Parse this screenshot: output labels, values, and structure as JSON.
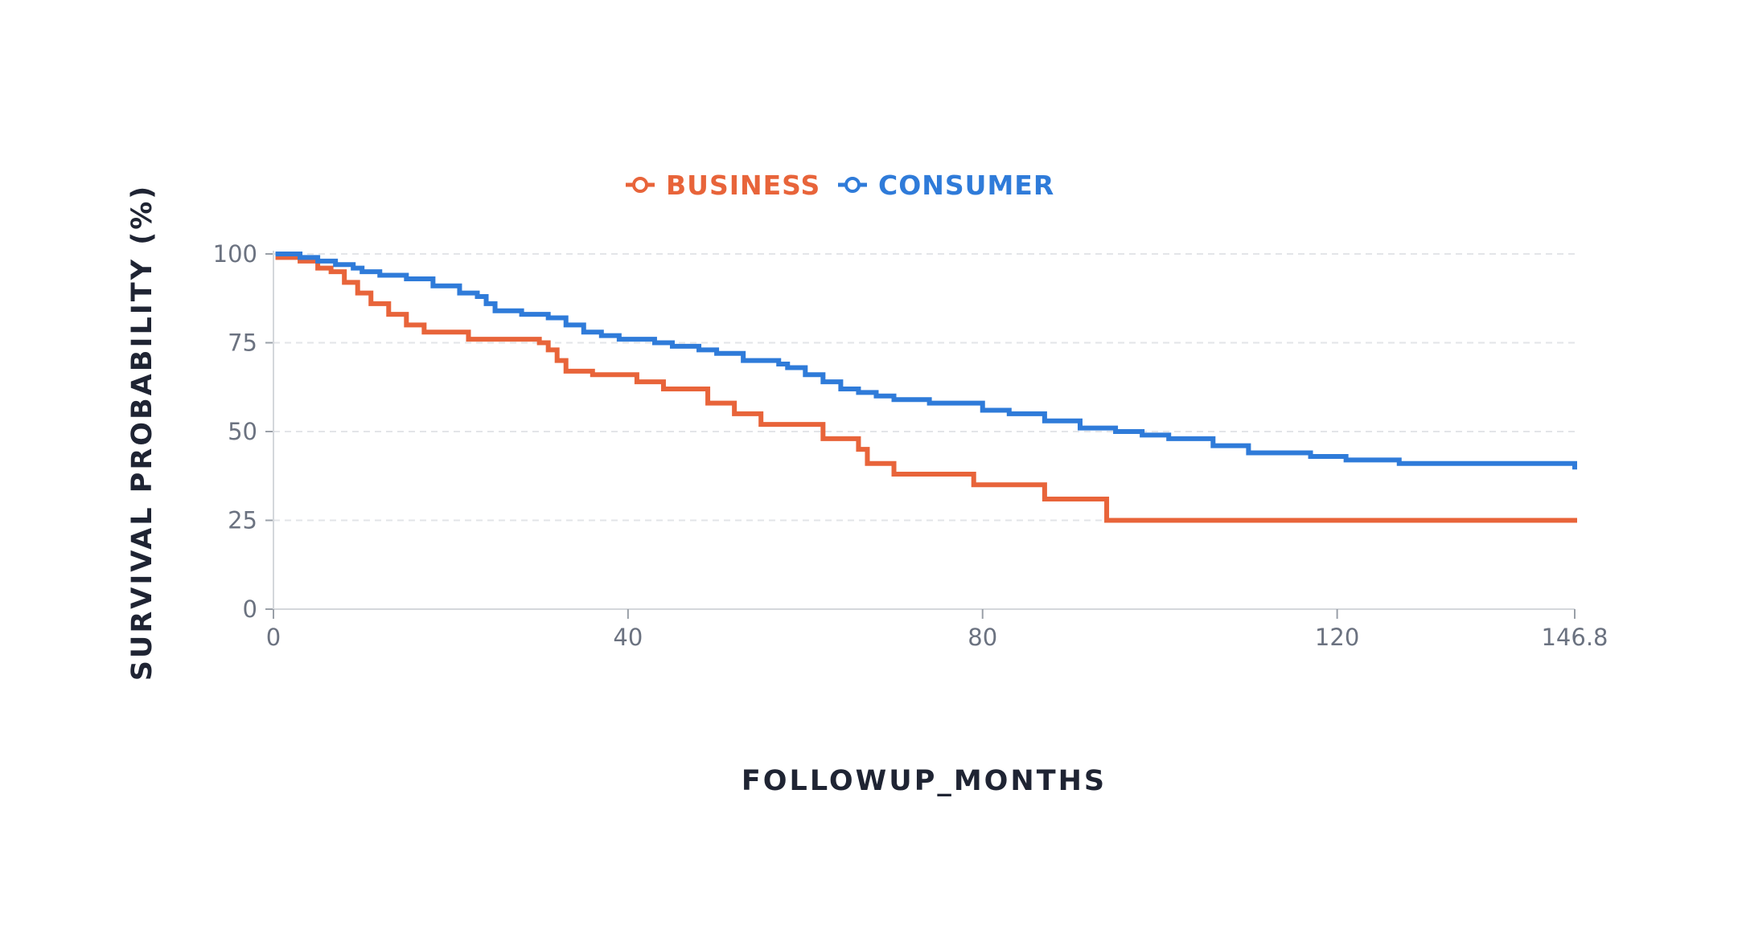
{
  "chart_data": {
    "type": "line",
    "step": true,
    "xlabel": "FOLLOWUP_MONTHS",
    "ylabel": "SURVIVAL PROBABILITY (%)",
    "xlim": [
      0,
      146.8
    ],
    "ylim": [
      0,
      100
    ],
    "xticks": [
      0,
      40,
      80,
      120,
      146.8
    ],
    "xtick_labels": [
      "0",
      "40",
      "80",
      "120",
      "146.8"
    ],
    "yticks": [
      0,
      25,
      50,
      75,
      100
    ],
    "ytick_labels": [
      "0",
      "25",
      "50",
      "75",
      "100"
    ],
    "grid": true,
    "legend_position": "top",
    "series": [
      {
        "name": "BUSINESS",
        "color": "#E8643A",
        "x": [
          0.5,
          3,
          5,
          6.5,
          8,
          9.5,
          11,
          13,
          15,
          17,
          22,
          30,
          31,
          32,
          33,
          36,
          41,
          44,
          49,
          52,
          55,
          62,
          66,
          67,
          70,
          79,
          87,
          94,
          146.8
        ],
        "y": [
          99,
          98,
          96,
          95,
          92,
          89,
          86,
          83,
          80,
          78,
          76,
          75,
          73,
          70,
          67,
          66,
          64,
          62,
          58,
          55,
          52,
          48,
          45,
          41,
          38,
          35,
          31,
          25,
          25
        ]
      },
      {
        "name": "CONSUMER",
        "color": "#2F7BD9",
        "x": [
          0.5,
          3,
          5,
          7,
          9,
          10,
          12,
          15,
          18,
          21,
          23,
          24,
          25,
          28,
          31,
          33,
          35,
          37,
          39,
          43,
          45,
          48,
          50,
          53,
          57,
          58,
          60,
          62,
          64,
          66,
          68,
          70,
          74,
          80,
          83,
          87,
          91,
          95,
          98,
          101,
          106,
          110,
          117,
          121,
          127,
          146.8
        ],
        "y": [
          100,
          99,
          98,
          97,
          96,
          95,
          94,
          93,
          91,
          89,
          88,
          86,
          84,
          83,
          82,
          80,
          78,
          77,
          76,
          75,
          74,
          73,
          72,
          70,
          69,
          68,
          66,
          64,
          62,
          61,
          60,
          59,
          58,
          56,
          55,
          53,
          51,
          50,
          49,
          48,
          46,
          44,
          43,
          42,
          41,
          40
        ]
      }
    ]
  }
}
